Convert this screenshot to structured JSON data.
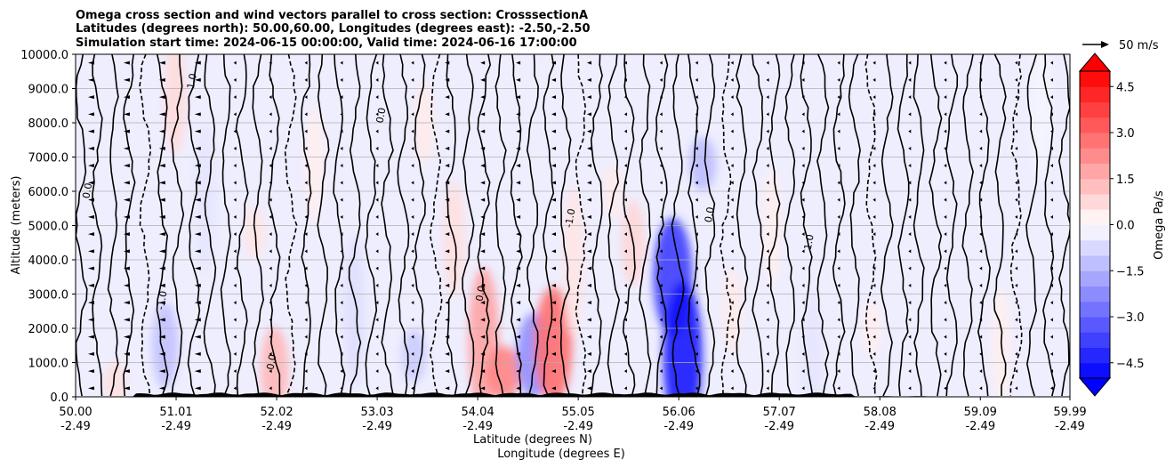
{
  "chart_data": {
    "type": "heatmap",
    "title_lines": [
      "Omega cross section and wind vectors parallel to cross section: CrosssectionA",
      "Latitudes (degrees north): 50.00,60.00, Longitudes (degrees east): -2.50,-2.50",
      "Simulation start time: 2024-06-15 00:00:00, Valid time: 2024-06-16 17:00:00"
    ],
    "xlabel_lines": [
      "Latitude (degrees N)",
      "Longitude (degrees E)"
    ],
    "ylabel": "Altitude (meters)",
    "ylim": [
      0,
      10000
    ],
    "yticks": [
      0,
      1000,
      2000,
      3000,
      4000,
      5000,
      6000,
      7000,
      8000,
      9000,
      10000
    ],
    "ytick_labels": [
      "0.0",
      "1000.0",
      "2000.0",
      "3000.0",
      "4000.0",
      "5000.0",
      "6000.0",
      "7000.0",
      "8000.0",
      "9000.0",
      "10000.0"
    ],
    "xlim": [
      50.0,
      59.99
    ],
    "xticks": [
      50.0,
      51.01,
      52.02,
      53.03,
      54.04,
      55.05,
      56.06,
      57.07,
      58.08,
      59.09,
      59.99
    ],
    "xtick_lat_labels": [
      "50.00",
      "51.01",
      "52.02",
      "53.03",
      "54.04",
      "55.05",
      "56.06",
      "57.07",
      "58.08",
      "59.09",
      "59.99"
    ],
    "xtick_lon_labels": [
      "-2.49",
      "-2.49",
      "-2.49",
      "-2.49",
      "-2.49",
      "-2.49",
      "-2.49",
      "-2.49",
      "-2.49",
      "-2.49",
      "-2.49"
    ],
    "grid": "horizontal",
    "colorbar": {
      "label": "Omega Pa/s",
      "vmin": -5,
      "vmax": 5,
      "ticks": [
        4.5,
        3.0,
        1.5,
        0.0,
        -1.5,
        -3.0,
        -4.5
      ],
      "tick_labels": [
        "4.5",
        "3.0",
        "1.5",
        "0.0",
        "−1.5",
        "−3.0",
        "−4.5"
      ],
      "extend": "both",
      "cmap": "bwr"
    },
    "quiver_key": {
      "label": "50 m/s",
      "speed": 50
    },
    "contour_labels": [
      "0.0",
      "-1.0",
      "1.0",
      "0.0",
      "0.0",
      "0.0",
      "-1.0",
      "0.0",
      "1.0"
    ],
    "omega_regions": [
      {
        "x": 50.4,
        "z": 300,
        "omega": 0.6
      },
      {
        "x": 50.9,
        "z": 1500,
        "omega": -1.2
      },
      {
        "x": 51.0,
        "z": 8800,
        "omega": 0.7
      },
      {
        "x": 51.3,
        "z": 5800,
        "omega": -0.5
      },
      {
        "x": 51.8,
        "z": 4800,
        "omega": 0.5
      },
      {
        "x": 52.0,
        "z": 800,
        "omega": 1.4
      },
      {
        "x": 52.4,
        "z": 6800,
        "omega": 0.3
      },
      {
        "x": 52.8,
        "z": 2500,
        "omega": -0.6
      },
      {
        "x": 53.4,
        "z": 1200,
        "omega": -1.0
      },
      {
        "x": 53.5,
        "z": 8000,
        "omega": 0.4
      },
      {
        "x": 53.8,
        "z": 4600,
        "omega": 0.6
      },
      {
        "x": 54.1,
        "z": 1600,
        "omega": 1.8
      },
      {
        "x": 54.3,
        "z": 700,
        "omega": 2.4
      },
      {
        "x": 54.6,
        "z": 1200,
        "omega": -2.2
      },
      {
        "x": 54.8,
        "z": 1500,
        "omega": 2.8
      },
      {
        "x": 55.0,
        "z": 4000,
        "omega": 0.5
      },
      {
        "x": 55.4,
        "z": 6000,
        "omega": 0.4
      },
      {
        "x": 55.6,
        "z": 4500,
        "omega": 0.8
      },
      {
        "x": 56.0,
        "z": 3500,
        "omega": -3.8
      },
      {
        "x": 56.1,
        "z": 1200,
        "omega": -4.6
      },
      {
        "x": 56.3,
        "z": 6800,
        "omega": -1.3
      },
      {
        "x": 56.6,
        "z": 2500,
        "omega": 0.4
      },
      {
        "x": 57.0,
        "z": 5000,
        "omega": 0.3
      },
      {
        "x": 57.4,
        "z": 900,
        "omega": -0.5
      },
      {
        "x": 58.0,
        "z": 2000,
        "omega": 0.3
      },
      {
        "x": 58.7,
        "z": 6500,
        "omega": -0.3
      },
      {
        "x": 59.3,
        "z": 1500,
        "omega": 0.3
      },
      {
        "x": 59.7,
        "z": 8500,
        "omega": -0.2
      }
    ]
  }
}
